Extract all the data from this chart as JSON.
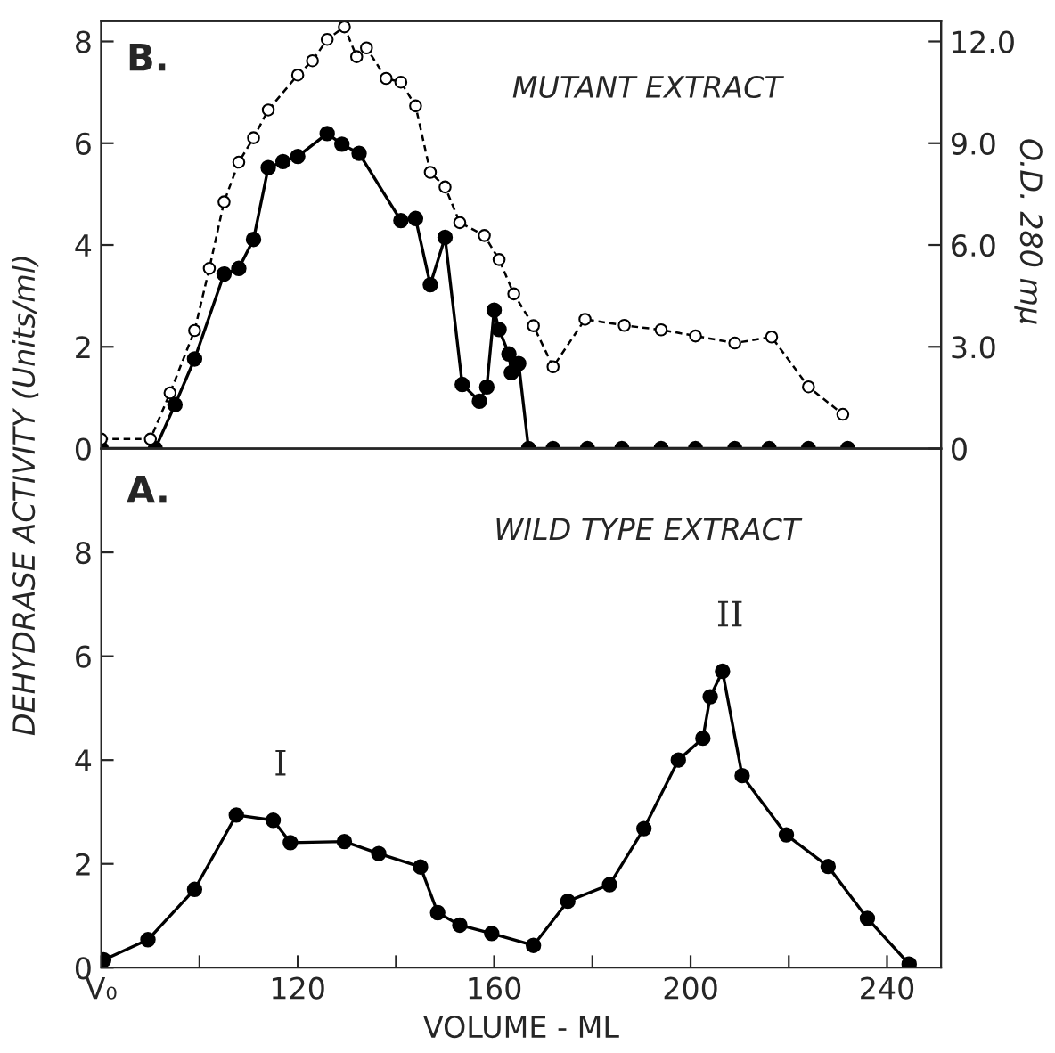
{
  "chart_data": [
    {
      "type": "line",
      "ylabel": "DEHYDRASE ACTIVITY (Units/ml)",
      "y2label": "O.D. 280 mμ",
      "annotations": [
        "B.",
        "MUTANT EXTRACT"
      ],
      "xlim": [
        80,
        251
      ],
      "ylim": [
        0,
        8.4
      ],
      "yticks": [
        0,
        2,
        4,
        6,
        8
      ],
      "y2lim": [
        0,
        12.6
      ],
      "y2ticks": [
        0,
        {
          "value": 3,
          "label": "3.0"
        },
        {
          "value": 6,
          "label": "6.0"
        },
        {
          "value": 9,
          "label": "9.0"
        },
        {
          "value": 12,
          "label": "12.0"
        }
      ],
      "tick_labels": "y",
      "marker": "circle",
      "grid": false,
      "legend": false,
      "series": [
        {
          "color": "#000000",
          "line_style": "solid",
          "x": [
            80,
            91,
            95,
            99,
            105,
            108,
            111,
            114,
            117,
            120,
            126,
            129,
            132.5,
            141,
            144,
            147,
            150,
            153.5,
            157,
            158.5,
            160,
            161,
            163,
            163.5,
            165,
            167,
            172,
            179,
            186,
            194,
            201,
            209,
            216,
            224,
            232
          ],
          "values": [
            0,
            0,
            0.86,
            1.76,
            3.43,
            3.54,
            4.11,
            5.52,
            5.64,
            5.74,
            6.19,
            5.98,
            5.8,
            4.48,
            4.52,
            3.22,
            4.15,
            1.26,
            0.93,
            1.21,
            2.72,
            2.34,
            1.86,
            1.49,
            1.67,
            0,
            0,
            0,
            0,
            0,
            0,
            0,
            0,
            0,
            0
          ]
        },
        {
          "color": "#000000",
          "line_style": "dashed",
          "axis": "y2",
          "x": [
            80,
            90,
            94,
            99,
            102,
            105,
            108,
            111,
            114,
            120,
            123,
            126,
            129.5,
            132,
            134,
            138,
            141,
            144,
            147,
            150,
            153,
            158,
            161,
            164,
            168,
            172,
            178.5,
            186.5,
            194,
            201,
            209,
            216.5,
            224,
            231
          ],
          "values": [
            0.28,
            0.28,
            1.64,
            3.48,
            5.31,
            7.27,
            8.44,
            9.16,
            9.98,
            11.01,
            11.43,
            12.06,
            12.43,
            11.55,
            11.81,
            10.91,
            10.8,
            10.1,
            8.14,
            7.71,
            6.66,
            6.28,
            5.57,
            4.56,
            3.62,
            2.41,
            3.81,
            3.63,
            3.5,
            3.32,
            3.11,
            3.29,
            1.82,
            1.01
          ]
        }
      ]
    },
    {
      "type": "line",
      "xlabel": "VOLUME - ML",
      "annotations": [
        "A.",
        "WILD TYPE EXTRACT",
        {
          "text": "I",
          "x": 115,
          "y": 2.84
        },
        {
          "text": "II",
          "x": 206.5,
          "y": 5.71
        }
      ],
      "xlim": [
        80,
        251
      ],
      "xticks": [
        {
          "value": 80,
          "label": "V₀"
        },
        {
          "value": 100,
          "label": null
        },
        120,
        {
          "value": 140,
          "label": null
        },
        160,
        {
          "value": 180,
          "label": null
        },
        200,
        {
          "value": 220,
          "label": null
        },
        240
      ],
      "ylim": [
        0,
        10
      ],
      "yticks": [
        0,
        2,
        4,
        6,
        8
      ],
      "marker": "circle",
      "grid": false,
      "legend": false,
      "series": [
        {
          "color": "#000000",
          "line_style": "solid",
          "x": [
            80.5,
            89.5,
            99,
            107.5,
            115,
            118.5,
            129.5,
            136.5,
            145,
            148.5,
            153,
            159.5,
            168,
            175,
            183.5,
            190.5,
            197.5,
            202.5,
            204,
            206.5,
            210.5,
            219.5,
            228,
            236,
            244.5
          ],
          "values": [
            0.15,
            0.54,
            1.51,
            2.94,
            2.84,
            2.41,
            2.43,
            2.2,
            1.94,
            1.06,
            0.82,
            0.66,
            0.43,
            1.28,
            1.6,
            2.68,
            4.0,
            4.42,
            5.22,
            5.71,
            3.7,
            2.56,
            1.95,
            0.95,
            0.07
          ]
        }
      ]
    }
  ]
}
